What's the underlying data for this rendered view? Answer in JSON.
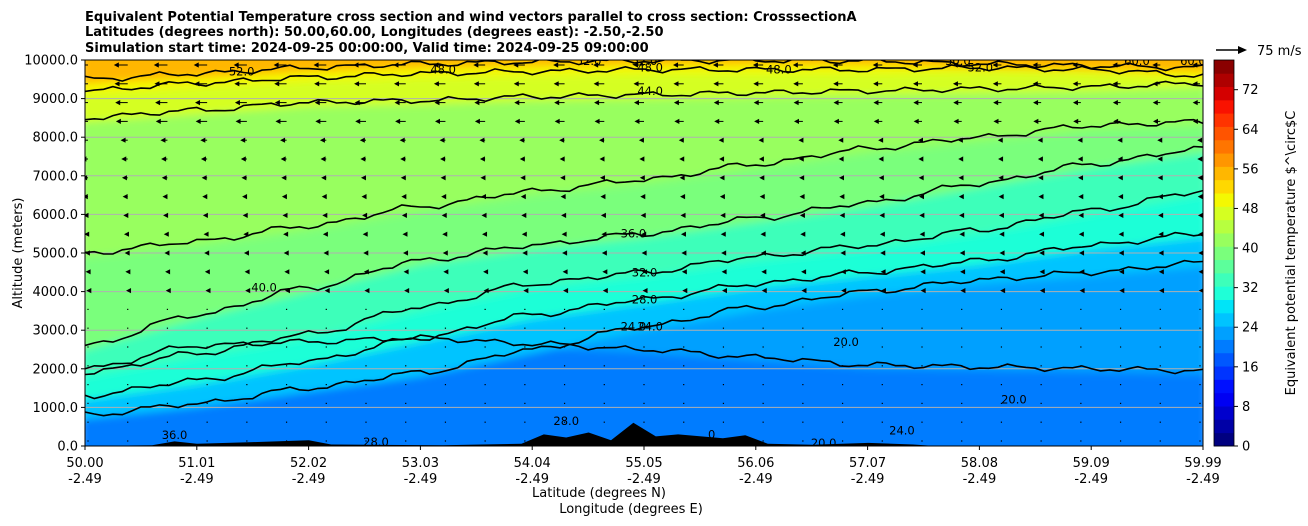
{
  "chart_data": {
    "type": "heatmap",
    "title_lines": [
      "Equivalent Potential Temperature cross section and wind vectors parallel to cross section: CrosssectionA",
      "Latitudes (degrees north): 50.00,60.00, Longitudes (degrees east): -2.50,-2.50",
      "Simulation start time: 2024-09-25 00:00:00, Valid time: 2024-09-25 09:00:00"
    ],
    "xlabel_lines": [
      "Latitude (degrees N)",
      "Longitude (degrees E)"
    ],
    "ylabel": "Altitude (meters)",
    "x_ticks": [
      {
        "lat": "50.00",
        "lon": "-2.49"
      },
      {
        "lat": "51.01",
        "lon": "-2.49"
      },
      {
        "lat": "52.02",
        "lon": "-2.49"
      },
      {
        "lat": "53.03",
        "lon": "-2.49"
      },
      {
        "lat": "54.04",
        "lon": "-2.49"
      },
      {
        "lat": "55.05",
        "lon": "-2.49"
      },
      {
        "lat": "56.06",
        "lon": "-2.49"
      },
      {
        "lat": "57.07",
        "lon": "-2.49"
      },
      {
        "lat": "58.08",
        "lon": "-2.49"
      },
      {
        "lat": "59.09",
        "lon": "-2.49"
      },
      {
        "lat": "59.99",
        "lon": "-2.49"
      }
    ],
    "y_ticks": [
      "0.0",
      "1000.0",
      "2000.0",
      "3000.0",
      "4000.0",
      "5000.0",
      "6000.0",
      "7000.0",
      "8000.0",
      "9000.0",
      "10000.0"
    ],
    "ylim": [
      0,
      10000
    ],
    "xlim": [
      50.0,
      59.99
    ],
    "grid": "horizontal",
    "colorbar": {
      "label": "Equivalent potential temperature $^\\circ$C",
      "ticks": [
        "0",
        "8",
        "16",
        "24",
        "32",
        "40",
        "48",
        "56",
        "64",
        "72"
      ],
      "range": [
        0,
        78
      ],
      "colors": [
        "#000080",
        "#0000a6",
        "#0000cd",
        "#0000f3",
        "#0010ff",
        "#0034ff",
        "#0058ff",
        "#007cff",
        "#00a0ff",
        "#00c4ff",
        "#00e4f8",
        "#1fffd7",
        "#3dffba",
        "#5cff9b",
        "#7aff7c",
        "#98ff5e",
        "#b7ff3f",
        "#d5ff21",
        "#f4f802",
        "#ffd800",
        "#ffb700",
        "#ff9600",
        "#ff7500",
        "#ff5400",
        "#ff3300",
        "#f91200",
        "#d40000",
        "#ae0000",
        "#8a0000"
      ]
    },
    "quiver_key": "75 m/s",
    "contour_labels": [
      {
        "text": "52.0",
        "lat": 51.4,
        "alt": 9700
      },
      {
        "text": "48.0",
        "lat": 53.2,
        "alt": 9750
      },
      {
        "text": "52.0",
        "lat": 54.5,
        "alt": 9980
      },
      {
        "text": "52.0",
        "lat": 55.0,
        "alt": 9980
      },
      {
        "text": "48.0",
        "lat": 55.05,
        "alt": 9800
      },
      {
        "text": "48.0",
        "lat": 56.2,
        "alt": 9750
      },
      {
        "text": "44.0",
        "lat": 55.05,
        "alt": 9200
      },
      {
        "text": "50.0",
        "lat": 57.8,
        "alt": 9980
      },
      {
        "text": "52.0",
        "lat": 58.0,
        "alt": 9800
      },
      {
        "text": "60.0",
        "lat": 59.4,
        "alt": 9980
      },
      {
        "text": "60.0",
        "lat": 59.9,
        "alt": 9980
      },
      {
        "text": "40.0",
        "lat": 51.6,
        "alt": 4100
      },
      {
        "text": "36.0",
        "lat": 54.9,
        "alt": 5500
      },
      {
        "text": "32.0",
        "lat": 55.0,
        "alt": 4500
      },
      {
        "text": "28.0",
        "lat": 55.0,
        "alt": 3800
      },
      {
        "text": "24.0",
        "lat": 54.9,
        "alt": 3100
      },
      {
        "text": "24.0",
        "lat": 55.05,
        "alt": 3100
      },
      {
        "text": "20.0",
        "lat": 56.8,
        "alt": 2700
      },
      {
        "text": "20.0",
        "lat": 58.3,
        "alt": 1200
      },
      {
        "text": "24.0",
        "lat": 57.3,
        "alt": 400
      },
      {
        "text": "20.0",
        "lat": 56.6,
        "alt": 80
      },
      {
        "text": "36.0",
        "lat": 50.8,
        "alt": 280
      },
      {
        "text": "28.0",
        "lat": 52.6,
        "alt": 100
      },
      {
        "text": "28.0",
        "lat": 54.3,
        "alt": 650
      },
      {
        "text": "0",
        "lat": 55.6,
        "alt": 300
      }
    ],
    "series": [
      {
        "theta": 20,
        "alt": [
          2000,
          2600,
          2700,
          2800,
          2650,
          2500,
          2300,
          2100,
          2050,
          2000,
          1950
        ]
      },
      {
        "theta": 24,
        "alt": [
          800,
          1100,
          1500,
          1900,
          2500,
          3100,
          3600,
          4000,
          4300,
          4500,
          4750
        ]
      },
      {
        "theta": 28,
        "alt": [
          1300,
          1700,
          2200,
          2800,
          3400,
          3800,
          4200,
          4500,
          4800,
          5200,
          5500
        ]
      },
      {
        "theta": 32,
        "alt": [
          1900,
          2400,
          2900,
          3600,
          4200,
          4500,
          4900,
          5200,
          5600,
          6100,
          6600
        ]
      },
      {
        "theta": 36,
        "alt": [
          2600,
          3400,
          4100,
          4800,
          5200,
          5500,
          5900,
          6300,
          6800,
          7300,
          7700
        ]
      },
      {
        "theta": 40,
        "alt": [
          5000,
          5300,
          5700,
          6200,
          6600,
          6900,
          7300,
          7700,
          8000,
          8300,
          8400
        ]
      },
      {
        "theta": 44,
        "alt": [
          8500,
          8700,
          8900,
          8950,
          9050,
          9100,
          9150,
          9200,
          9250,
          9300,
          9400
        ]
      },
      {
        "theta": 48,
        "alt": [
          9200,
          9400,
          9550,
          9650,
          9700,
          9750,
          9750,
          9750,
          9800,
          9750,
          9600
        ]
      },
      {
        "theta": 52,
        "alt": [
          9500,
          9650,
          9800,
          9900,
          9950,
          9980,
          9990,
          9980,
          9900,
          9850,
          9800
        ]
      }
    ],
    "terrain": [
      {
        "lat": 50.0,
        "alt": 0
      },
      {
        "lat": 50.6,
        "alt": 20
      },
      {
        "lat": 50.8,
        "alt": 120
      },
      {
        "lat": 51.0,
        "alt": 60
      },
      {
        "lat": 51.5,
        "alt": 100
      },
      {
        "lat": 52.0,
        "alt": 150
      },
      {
        "lat": 52.2,
        "alt": 40
      },
      {
        "lat": 52.5,
        "alt": 30
      },
      {
        "lat": 53.2,
        "alt": 20
      },
      {
        "lat": 53.9,
        "alt": 60
      },
      {
        "lat": 54.1,
        "alt": 300
      },
      {
        "lat": 54.3,
        "alt": 220
      },
      {
        "lat": 54.5,
        "alt": 350
      },
      {
        "lat": 54.7,
        "alt": 150
      },
      {
        "lat": 54.9,
        "alt": 600
      },
      {
        "lat": 55.1,
        "alt": 250
      },
      {
        "lat": 55.3,
        "alt": 300
      },
      {
        "lat": 55.7,
        "alt": 200
      },
      {
        "lat": 55.9,
        "alt": 280
      },
      {
        "lat": 56.1,
        "alt": 60
      },
      {
        "lat": 56.5,
        "alt": 30
      },
      {
        "lat": 57.0,
        "alt": 80
      },
      {
        "lat": 57.4,
        "alt": 40
      },
      {
        "lat": 57.6,
        "alt": 0
      },
      {
        "lat": 59.99,
        "alt": 0
      }
    ]
  }
}
